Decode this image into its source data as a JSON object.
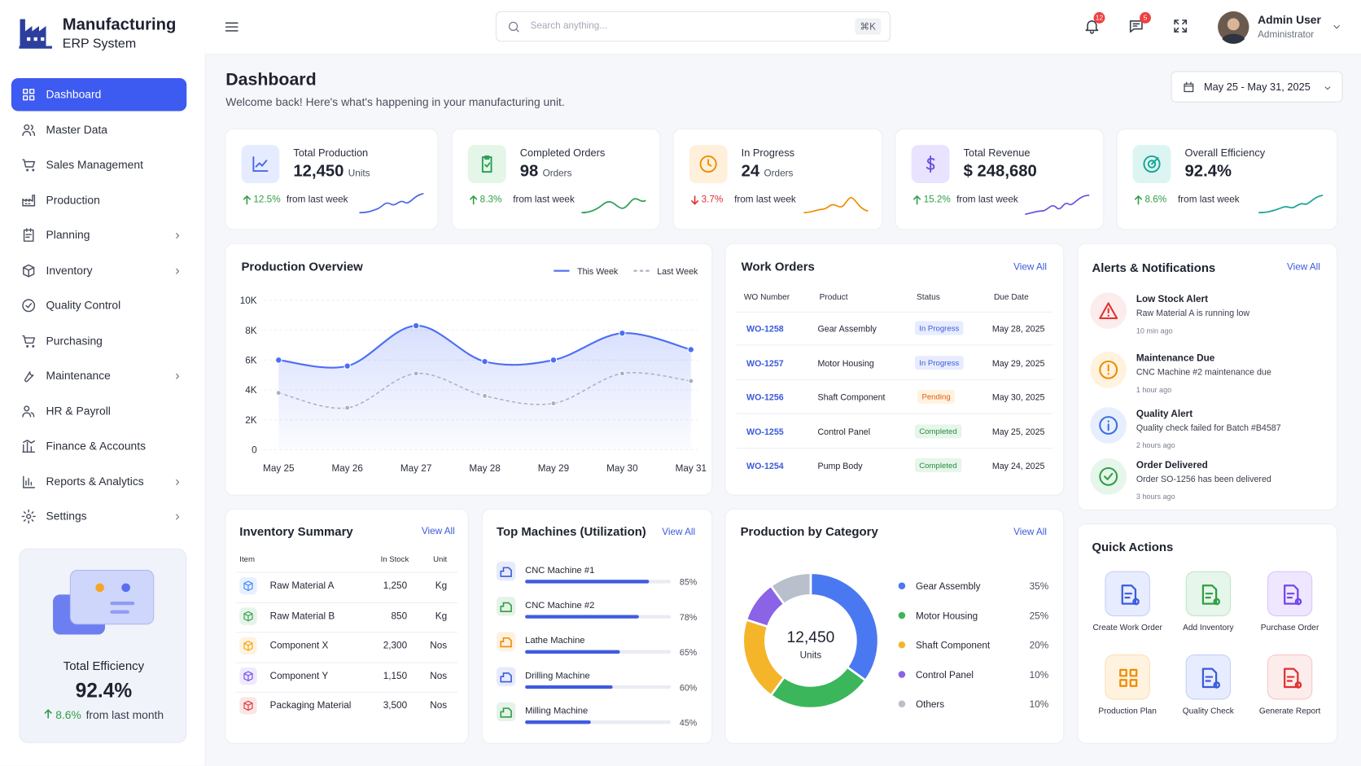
{
  "sidebar": {
    "brand": {
      "title": "Manufacturing",
      "subtitle": "ERP System"
    },
    "menu": [
      "Dashboard",
      "Master Data",
      "Sales Management",
      "Production",
      "Planning",
      "Inventory",
      "Quality Control",
      "Purchasing",
      "Maintenance",
      "HR & Payroll",
      "Finance & Accounts",
      "Reports & Analytics",
      "Settings"
    ],
    "efficiency": {
      "title": "Total Efficiency",
      "value": "92.4%",
      "change": "8.6%",
      "note": "from last month"
    }
  },
  "header": {
    "search_placeholder": "Search anything...",
    "shortcut": "⌘K",
    "notification_count": 12,
    "message_count": 5,
    "user": {
      "name": "Admin User",
      "role": "Administrator"
    }
  },
  "page": {
    "title": "Dashboard",
    "subtitle": "Welcome back! Here's what's happening in your manufacturing unit.",
    "date_range": "May 25 - May 31, 2025"
  },
  "kpis": [
    {
      "label": "Total Production",
      "value": "12,450",
      "unit": "Units",
      "change": "12.5%",
      "note": "from last week"
    },
    {
      "label": "Completed Orders",
      "value": "98",
      "unit": "Orders",
      "change": "8.3%",
      "note": "from last week"
    },
    {
      "label": "In Progress",
      "value": "24",
      "unit": "Orders",
      "change": "3.7%",
      "note": "from last week"
    },
    {
      "label": "Total Revenue",
      "value": "$ 248,680",
      "change": "15.2%",
      "note": "from last week"
    },
    {
      "label": "Overall Efficiency",
      "value": "92.4%",
      "change": "8.6%",
      "note": "from last week"
    }
  ],
  "work_orders": {
    "title": "Work Orders",
    "link": "View All",
    "columns": [
      "WO Number",
      "Product",
      "Status",
      "Due Date"
    ],
    "rows": [
      [
        "WO-1258",
        "Gear Assembly",
        "In Progress",
        "May 28, 2025"
      ],
      [
        "WO-1257",
        "Motor Housing",
        "In Progress",
        "May 29, 2025"
      ],
      [
        "WO-1256",
        "Shaft Component",
        "Pending",
        "May 30, 2025"
      ],
      [
        "WO-1255",
        "Control Panel",
        "Completed",
        "May 25, 2025"
      ],
      [
        "WO-1254",
        "Pump Body",
        "Completed",
        "May 24, 2025"
      ]
    ]
  },
  "inventory": {
    "title": "Inventory Summary",
    "link": "View All",
    "columns": [
      "Item",
      "In Stock",
      "Unit"
    ],
    "rows": [
      [
        "Raw Material A",
        "1,250",
        "Kg"
      ],
      [
        "Raw Material B",
        "850",
        "Kg"
      ],
      [
        "Component X",
        "2,300",
        "Nos"
      ],
      [
        "Component Y",
        "1,150",
        "Nos"
      ],
      [
        "Packaging Material",
        "3,500",
        "Nos"
      ]
    ]
  },
  "alerts": {
    "title": "Alerts & Notifications",
    "link": "View All",
    "items": [
      {
        "title": "Low Stock Alert",
        "message": "Raw Material A is running low",
        "time": "10 min ago"
      },
      {
        "title": "Maintenance Due",
        "message": "CNC Machine #2 maintenance due",
        "time": "1 hour ago"
      },
      {
        "title": "Quality Alert",
        "message": "Quality check failed for Batch #B4587",
        "time": "2 hours ago"
      },
      {
        "title": "Order Delivered",
        "message": "Order SO-1256 has been delivered",
        "time": "3 hours ago"
      }
    ]
  },
  "quick_actions": {
    "title": "Quick Actions",
    "items": [
      "Create Work Order",
      "Add Inventory",
      "Purchase Order",
      "Production Plan",
      "Quality Check",
      "Generate Report"
    ]
  },
  "chart_data": [
    {
      "type": "line",
      "title": "Production Overview",
      "categories": [
        "May 25",
        "May 26",
        "May 27",
        "May 28",
        "May 29",
        "May 30",
        "May 31"
      ],
      "series": [
        {
          "name": "This Week",
          "color": "#4c6ef5",
          "values": [
            6000,
            5600,
            8300,
            5900,
            6000,
            7800,
            6700
          ]
        },
        {
          "name": "Last Week",
          "color": "#a9b0c2",
          "dashed": true,
          "values": [
            3800,
            2800,
            5100,
            3600,
            3100,
            5100,
            4600
          ]
        }
      ],
      "ylim": [
        0,
        10000
      ],
      "yticks": [
        0,
        {
          "value": 2000,
          "label": "2K"
        },
        {
          "value": 4000,
          "label": "4K"
        },
        {
          "value": 6000,
          "label": "6K"
        },
        {
          "value": 8000,
          "label": "8K"
        },
        {
          "value": 10000,
          "label": "10K"
        }
      ],
      "grid": true,
      "legend": "top-right"
    },
    {
      "type": "bar",
      "orientation": "horizontal",
      "title": "Top Machines (Utilization)",
      "link": "View All",
      "categories": [
        "CNC Machine #1",
        "CNC Machine #2",
        "Lathe Machine",
        "Drilling Machine",
        "Milling Machine"
      ],
      "values": [
        85,
        78,
        65,
        60,
        45
      ],
      "value_labels": [
        "85%",
        "78%",
        "65%",
        "60%",
        "45%"
      ],
      "xlim": [
        0,
        100
      ],
      "color": "#3f5be0"
    },
    {
      "type": "pie",
      "donut": true,
      "title": "Production by Category",
      "link": "View All",
      "center_value": "12,450",
      "center_label": "Units",
      "categories": [
        "Gear Assembly",
        "Motor Housing",
        "Shaft Component",
        "Control Panel",
        "Others"
      ],
      "values": [
        35,
        25,
        20,
        10,
        10
      ],
      "value_labels": [
        "35%",
        "25%",
        "20%",
        "10%",
        "10%"
      ],
      "colors": [
        "#4a78f0",
        "#3cb65a",
        "#f5b52b",
        "#8a63e6",
        "#b9bfcb"
      ]
    }
  ]
}
